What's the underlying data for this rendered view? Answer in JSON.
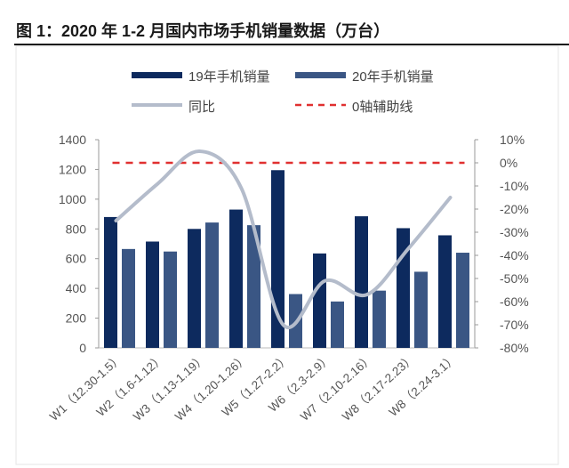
{
  "chart_data": {
    "type": "bar+line",
    "title": "图 1：2020 年 1-2 月国内市场手机销量数据（万台）",
    "categories": [
      "W1（12.30-1.5）",
      "W2（1.6-1.12）",
      "W3（1.13-1.19）",
      "W4（1.20-1.26）",
      "W5（1.27-2.2）",
      "W6（2.3-2.9）",
      "W7（2.10-2.16）",
      "W8（2.17-2.23）",
      "W8（2.24-3.1）"
    ],
    "series": [
      {
        "name": "19年手机销量",
        "type": "bar",
        "axis": "left",
        "color": "#0d2a5e",
        "values": [
          880,
          715,
          800,
          930,
          1195,
          635,
          885,
          805,
          757
        ]
      },
      {
        "name": "20年手机销量",
        "type": "bar",
        "axis": "left",
        "color": "#3a5684",
        "values": [
          665,
          648,
          843,
          825,
          362,
          312,
          385,
          512,
          640
        ]
      },
      {
        "name": "同比",
        "type": "line",
        "axis": "right",
        "color": "#b4bccb",
        "values": [
          -25,
          -9,
          5,
          -11,
          -70,
          -51,
          -57,
          -37,
          -15
        ]
      },
      {
        "name": "0轴辅助线",
        "type": "line",
        "axis": "right",
        "color": "#e03030",
        "dashed": true,
        "values": [
          0,
          0,
          0,
          0,
          0,
          0,
          0,
          0,
          0
        ]
      }
    ],
    "left_axis": {
      "ylim": [
        0,
        1400
      ],
      "ticks": [
        "0",
        "200",
        "400",
        "600",
        "800",
        "1000",
        "1200",
        "1400"
      ]
    },
    "right_axis": {
      "ylim": [
        -80,
        10
      ],
      "ticks": [
        "-80%",
        "-70%",
        "-60%",
        "-50%",
        "-40%",
        "-30%",
        "-20%",
        "-10%",
        "0%",
        "10%"
      ]
    },
    "legend_position": "top",
    "grid": false
  }
}
